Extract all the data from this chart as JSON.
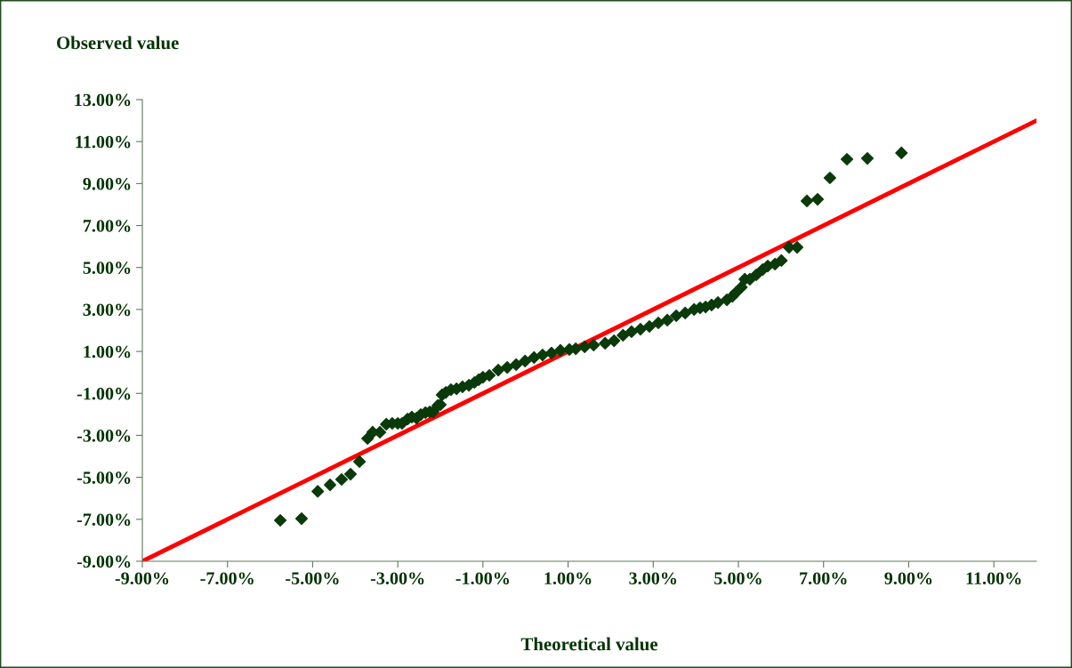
{
  "chart_data": {
    "type": "scatter",
    "xlabel": "Theoretical value",
    "ylabel": "Observed value",
    "xlim": [
      -9,
      12
    ],
    "ylim": [
      -9,
      13
    ],
    "xticks": [
      {
        "value": -9,
        "label": "-9.00%"
      },
      {
        "value": -7,
        "label": "-7.00%"
      },
      {
        "value": -5,
        "label": "-5.00%"
      },
      {
        "value": -3,
        "label": "-3.00%"
      },
      {
        "value": -1,
        "label": "-1.00%"
      },
      {
        "value": 1,
        "label": "1.00%"
      },
      {
        "value": 3,
        "label": "3.00%"
      },
      {
        "value": 5,
        "label": "5.00%"
      },
      {
        "value": 7,
        "label": "7.00%"
      },
      {
        "value": 9,
        "label": "9.00%"
      },
      {
        "value": 11,
        "label": "11.00%"
      }
    ],
    "yticks": [
      {
        "value": -9,
        "label": "-9.00%"
      },
      {
        "value": -7,
        "label": "-7.00%"
      },
      {
        "value": -5,
        "label": "-5.00%"
      },
      {
        "value": -3,
        "label": "-3.00%"
      },
      {
        "value": -1,
        "label": "-1.00%"
      },
      {
        "value": 1,
        "label": "1.00%"
      },
      {
        "value": 3,
        "label": "3.00%"
      },
      {
        "value": 5,
        "label": "5.00%"
      },
      {
        "value": 7,
        "label": "7.00%"
      },
      {
        "value": 9,
        "label": "9.00%"
      },
      {
        "value": 11,
        "label": "11.00%"
      },
      {
        "value": 13,
        "label": "13.00%"
      }
    ],
    "grid": false,
    "legend": false,
    "series": [
      {
        "color": "#0a3a0a",
        "marker": "diamond",
        "x": [
          -5.76,
          -5.26,
          -4.88,
          -4.59,
          -4.32,
          -4.11,
          -3.9,
          -3.71,
          -3.59,
          -3.42,
          -3.27,
          -3.13,
          -3.0,
          -2.9,
          -2.77,
          -2.67,
          -2.56,
          -2.46,
          -2.35,
          -2.25,
          -2.17,
          -2.06,
          -2.0,
          -1.96,
          -1.87,
          -1.75,
          -1.62,
          -1.48,
          -1.33,
          -1.2,
          -1.1,
          -1.0,
          -0.85,
          -0.64,
          -0.43,
          -0.22,
          -0.01,
          0.2,
          0.4,
          0.61,
          0.82,
          1.03,
          1.18,
          1.39,
          1.6,
          1.87,
          2.08,
          2.29,
          2.49,
          2.7,
          2.91,
          3.12,
          3.33,
          3.54,
          3.75,
          3.96,
          4.1,
          4.23,
          4.37,
          4.52,
          4.73,
          4.86,
          4.94,
          5.07,
          5.15,
          5.27,
          5.42,
          5.57,
          5.69,
          5.86,
          6.01,
          6.19,
          6.38,
          6.61,
          6.86,
          7.15,
          7.55,
          8.03,
          8.83
        ],
        "values": [
          -7.05,
          -6.97,
          -5.67,
          -5.36,
          -5.1,
          -4.85,
          -4.25,
          -3.15,
          -2.85,
          -2.85,
          -2.47,
          -2.43,
          -2.43,
          -2.43,
          -2.22,
          -2.13,
          -2.18,
          -2.01,
          -1.92,
          -1.88,
          -1.88,
          -1.58,
          -1.54,
          -1.07,
          -0.95,
          -0.82,
          -0.78,
          -0.69,
          -0.61,
          -0.48,
          -0.35,
          -0.23,
          -0.14,
          0.11,
          0.24,
          0.37,
          0.54,
          0.71,
          0.83,
          0.92,
          1.05,
          1.09,
          1.13,
          1.22,
          1.3,
          1.39,
          1.51,
          1.77,
          1.94,
          2.06,
          2.19,
          2.36,
          2.49,
          2.7,
          2.83,
          3.0,
          3.08,
          3.12,
          3.21,
          3.33,
          3.46,
          3.63,
          3.8,
          4.06,
          4.44,
          4.44,
          4.65,
          4.9,
          5.07,
          5.16,
          5.33,
          5.96,
          5.96,
          8.17,
          8.25,
          9.27,
          10.16,
          10.2,
          10.46
        ]
      },
      {
        "type": "line",
        "color": "#ff0000",
        "line_style": "solid",
        "marker": "none",
        "x": [
          -9,
          12
        ],
        "values": [
          -9,
          12
        ]
      }
    ]
  }
}
